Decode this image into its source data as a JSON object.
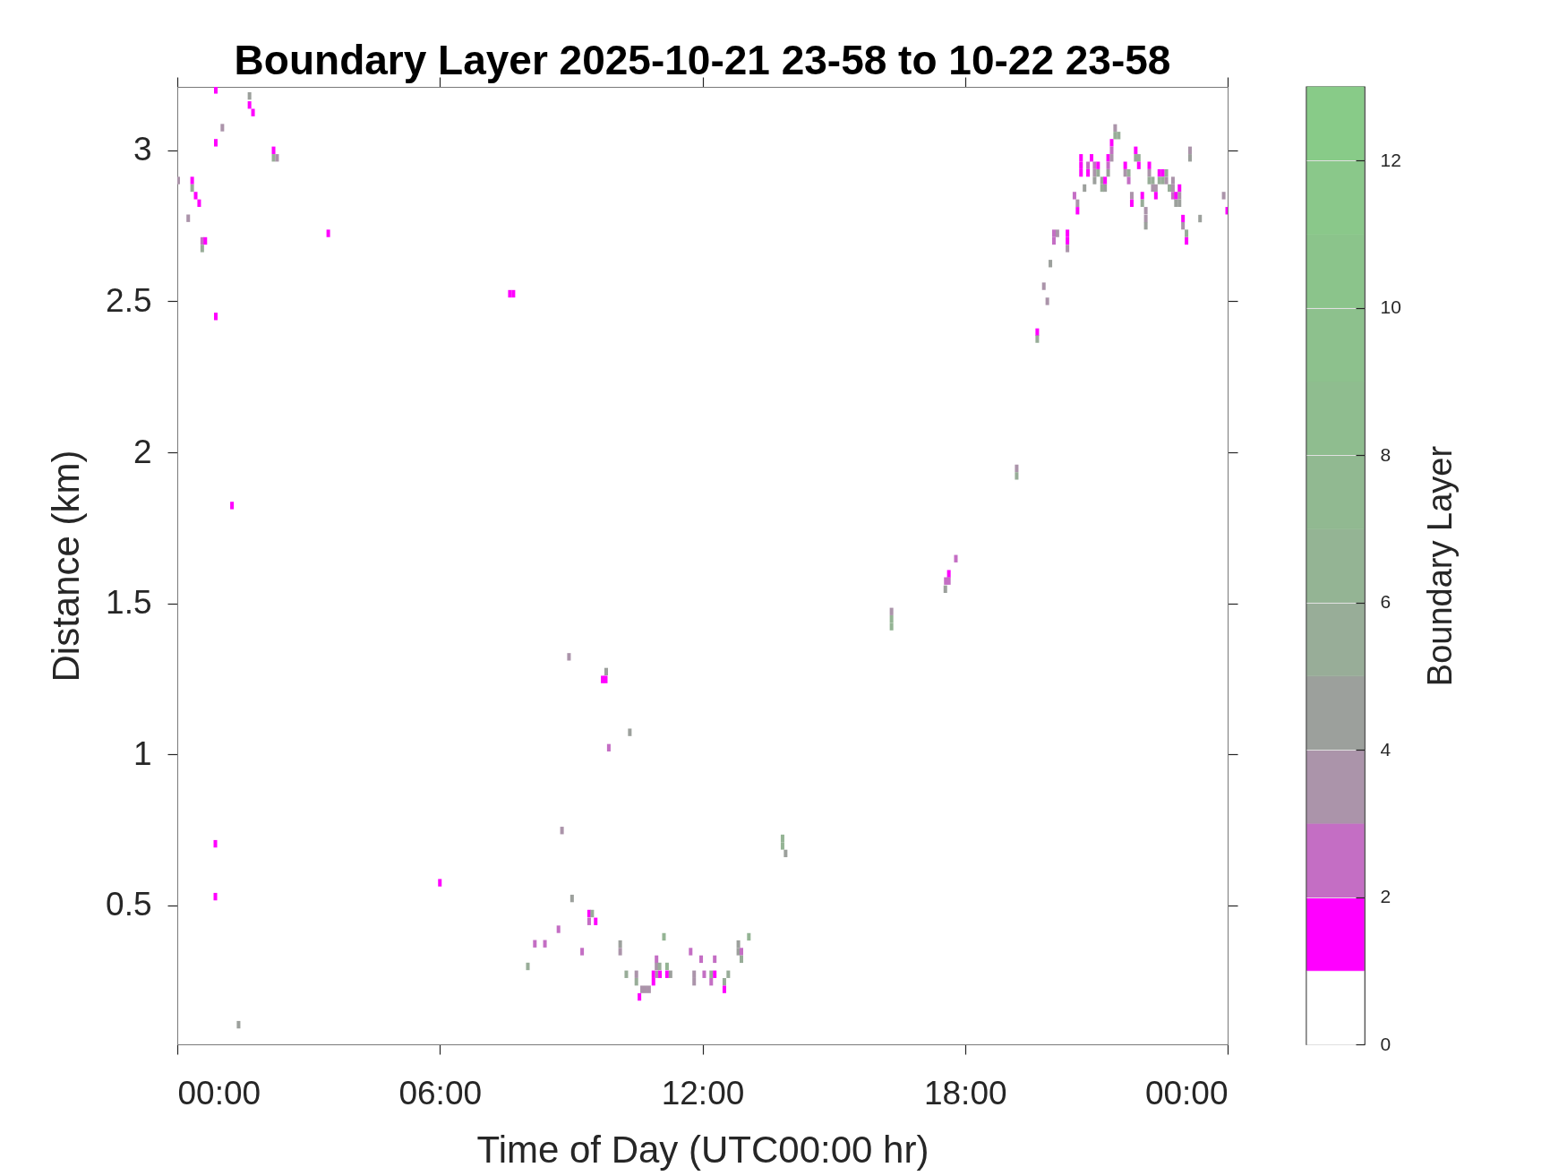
{
  "chart_data": {
    "type": "scatter",
    "title": "Boundary Layer 2025-10-21 23-58 to 10-22 23-58",
    "xlabel": "Time of Day (UTC00:00 hr)",
    "ylabel": "Distance (km)",
    "clabel": "Boundary Layer",
    "x": [
      0.88,
      1.65,
      1.65,
      1.73,
      1.03,
      0.88,
      2.2,
      2.2,
      2.28,
      0.02,
      0.34,
      0.34,
      0.42,
      0.5,
      0.25,
      0.57,
      0.64,
      0.57,
      3.45,
      0.88,
      1.25,
      0.87,
      0.87,
      1.4,
      7.6,
      7.68,
      6.0,
      8.95,
      9.8,
      9.72,
      9.79,
      10.34,
      9.86,
      8.79,
      13.83,
      13.83,
      13.9,
      9.02,
      9.41,
      9.48,
      9.41,
      9.56,
      8.71,
      8.17,
      8.4,
      9.25,
      10.12,
      10.12,
      8.01,
      11.12,
      13.06,
      12.82,
      12.82,
      12.89,
      12.89,
      11.73,
      11.97,
      12.28,
      10.95,
      10.95,
      11.02,
      11.19,
      10.26,
      10.49,
      10.88,
      10.96,
      11.03,
      11.19,
      11.27,
      11.81,
      12.04,
      12.2,
      12.28,
      12.59,
      10.49,
      10.88,
      11.81,
      12.2,
      12.5,
      10.62,
      10.7,
      10.78,
      12.5,
      10.56,
      19.18,
      19.18,
      17.79,
      17.63,
      17.56,
      17.63,
      17.55,
      16.32,
      16.32,
      16.32,
      19.65,
      19.65,
      19.8,
      19.88,
      19.95,
      20.03,
      20.03,
      20.11,
      20.34,
      20.34,
      20.34,
      20.5,
      20.57,
      20.57,
      20.65,
      20.65,
      20.65,
      20.73,
      20.81,
      20.81,
      20.89,
      20.96,
      20.96,
      20.96,
      21.04,
      21.04,
      21.13,
      21.13,
      21.2,
      21.2,
      21.27,
      21.27,
      21.27,
      21.35,
      21.35,
      21.35,
      21.43,
      21.43,
      21.51,
      21.66,
      21.66,
      21.74,
      21.74,
      21.81,
      21.81,
      21.9,
      21.9,
      21.97,
      21.97,
      22.05,
      22.05,
      22.13,
      22.13,
      22.13,
      22.21,
      22.21,
      22.21,
      22.29,
      22.29,
      22.36,
      22.36,
      22.44,
      22.44,
      22.52,
      22.52,
      22.6,
      22.6,
      22.67,
      22.75,
      22.75,
      22.75,
      22.82,
      22.82,
      22.9,
      22.9,
      22.9,
      22.98,
      22.98,
      23.06,
      23.06,
      23.14,
      23.14,
      23.37,
      23.91,
      23.99
    ],
    "values": [
      3.2,
      3.18,
      3.15,
      3.125,
      3.075,
      3.025,
      3.0,
      2.975,
      2.975,
      2.9,
      2.9,
      2.875,
      2.85,
      2.825,
      2.775,
      2.7,
      2.7,
      2.675,
      2.725,
      2.45,
      1.824,
      0.704,
      0.529,
      0.105,
      2.525,
      2.525,
      0.575,
      1.323,
      1.274,
      1.248,
      1.248,
      1.073,
      1.022,
      0.748,
      0.722,
      0.697,
      0.672,
      0.523,
      0.473,
      0.473,
      0.447,
      0.447,
      0.421,
      0.373,
      0.373,
      0.347,
      0.372,
      0.347,
      0.298,
      0.396,
      0.396,
      0.372,
      0.347,
      0.347,
      0.322,
      0.347,
      0.322,
      0.322,
      0.322,
      0.298,
      0.298,
      0.298,
      0.272,
      0.272,
      0.272,
      0.272,
      0.272,
      0.272,
      0.272,
      0.272,
      0.272,
      0.272,
      0.272,
      0.272,
      0.247,
      0.247,
      0.247,
      0.247,
      0.247,
      0.222,
      0.222,
      0.222,
      0.222,
      0.197,
      1.947,
      1.922,
      1.648,
      1.598,
      1.574,
      1.574,
      1.547,
      1.473,
      1.448,
      1.423,
      2.398,
      2.375,
      2.55,
      2.5,
      2.625,
      2.725,
      2.7,
      2.725,
      2.725,
      2.7,
      2.675,
      2.85,
      2.825,
      2.8,
      2.975,
      2.95,
      2.925,
      2.875,
      2.95,
      2.925,
      2.975,
      2.95,
      2.925,
      2.9,
      2.95,
      2.925,
      2.9,
      2.875,
      2.9,
      2.875,
      2.975,
      2.95,
      2.925,
      3.025,
      3.0,
      2.975,
      3.074,
      3.049,
      3.049,
      2.95,
      2.925,
      2.925,
      2.9,
      2.85,
      2.825,
      3.0,
      2.975,
      2.975,
      2.95,
      2.85,
      2.825,
      2.8,
      2.774,
      2.75,
      2.95,
      2.925,
      2.9,
      2.9,
      2.875,
      2.875,
      2.85,
      2.925,
      2.9,
      2.925,
      2.9,
      2.925,
      2.9,
      2.875,
      2.9,
      2.875,
      2.85,
      2.85,
      2.825,
      2.875,
      2.85,
      2.825,
      2.774,
      2.75,
      2.725,
      2.7,
      3.0,
      2.975,
      2.774,
      2.85,
      2.8
    ],
    "cvalues": [
      1,
      4,
      1,
      1,
      3,
      1,
      1,
      5,
      3,
      3,
      1,
      5,
      1,
      1,
      3,
      2,
      1,
      5,
      1,
      1,
      1,
      1,
      1,
      4,
      1,
      1,
      1,
      3,
      4,
      1,
      1,
      4,
      2,
      3,
      6,
      6,
      4,
      4,
      1,
      5,
      2,
      1,
      2,
      2,
      2,
      2,
      4,
      3,
      5,
      6,
      6,
      4,
      4,
      2,
      5,
      2,
      2,
      2,
      2,
      3,
      5,
      6,
      5,
      3,
      1,
      3,
      1,
      1,
      4,
      3,
      2,
      5,
      1,
      5,
      5,
      1,
      3,
      2,
      5,
      3,
      3,
      3,
      1,
      1,
      3,
      5,
      2,
      1,
      2,
      2,
      4,
      3,
      6,
      6,
      1,
      5,
      3,
      3,
      4,
      2,
      2,
      3,
      1,
      1,
      3,
      2,
      3,
      1,
      1,
      1,
      1,
      4,
      2,
      1,
      1,
      2,
      3,
      4,
      1,
      5,
      4,
      5,
      1,
      4,
      1,
      2,
      4,
      1,
      2,
      3,
      3,
      5,
      5,
      1,
      3,
      5,
      2,
      3,
      1,
      1,
      5,
      5,
      1,
      1,
      5,
      3,
      3,
      4,
      1,
      3,
      5,
      5,
      3,
      3,
      1,
      1,
      5,
      1,
      5,
      5,
      3,
      5,
      3,
      3,
      2,
      1,
      4,
      1,
      3,
      4,
      1,
      3,
      5,
      1,
      3,
      4,
      4,
      3,
      1
    ],
    "xlim": [
      0,
      24
    ],
    "xticks": [
      {
        "value": 0,
        "label": "00:00"
      },
      {
        "value": 6,
        "label": "06:00"
      },
      {
        "value": 12,
        "label": "12:00"
      },
      {
        "value": 18,
        "label": "18:00"
      },
      {
        "value": 24,
        "label": "00:00"
      }
    ],
    "ylim": [
      0.04,
      3.21
    ],
    "yticks": [
      0.5,
      1,
      1.5,
      2,
      2.5,
      3
    ],
    "clim": [
      0,
      13
    ],
    "cticks": [
      0,
      2,
      4,
      6,
      8,
      10,
      12
    ],
    "marker": "square"
  }
}
